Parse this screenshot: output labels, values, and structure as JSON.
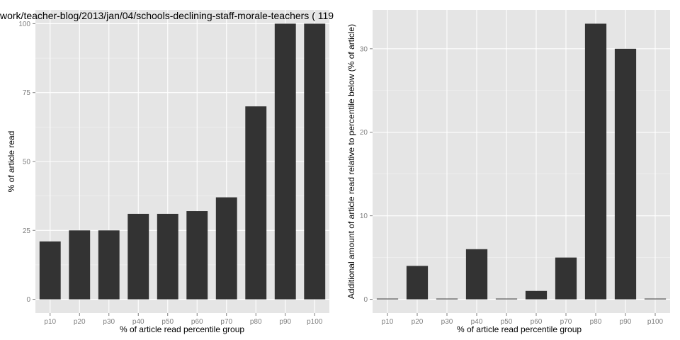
{
  "chart_data": [
    {
      "type": "bar",
      "title": "work/teacher-blog/2013/jan/04/schools-declining-staff-morale-teachers ( 119",
      "xlabel": "% of article read percentile group",
      "ylabel": "% of article read",
      "categories": [
        "p10",
        "p20",
        "p30",
        "p40",
        "p50",
        "p60",
        "p70",
        "p80",
        "p90",
        "p100"
      ],
      "values": [
        21,
        25,
        25,
        31,
        31,
        32,
        37,
        70,
        100,
        100
      ],
      "ylim": [
        -5,
        105
      ],
      "yticks": [
        0,
        25,
        50,
        75,
        100
      ],
      "yminor": [
        12.5,
        37.5,
        62.5,
        87.5
      ],
      "grid": true,
      "bar_color": "#333333",
      "panel_color": "#e5e5e5"
    },
    {
      "type": "bar",
      "title": "",
      "xlabel": "% of article read percentile group",
      "ylabel": "Additional amount of article read relative to percentile below (% of article)",
      "categories": [
        "p10",
        "p20",
        "p30",
        "p40",
        "p50",
        "p60",
        "p70",
        "p80",
        "p90",
        "p100"
      ],
      "values": [
        0,
        4,
        0,
        6,
        0,
        1,
        5,
        33,
        30,
        0
      ],
      "ylim": [
        -1.65,
        34.65
      ],
      "yticks": [
        0,
        10,
        20,
        30
      ],
      "yminor": [
        5,
        15,
        25
      ],
      "grid": true,
      "bar_color": "#333333",
      "panel_color": "#e5e5e5"
    }
  ]
}
